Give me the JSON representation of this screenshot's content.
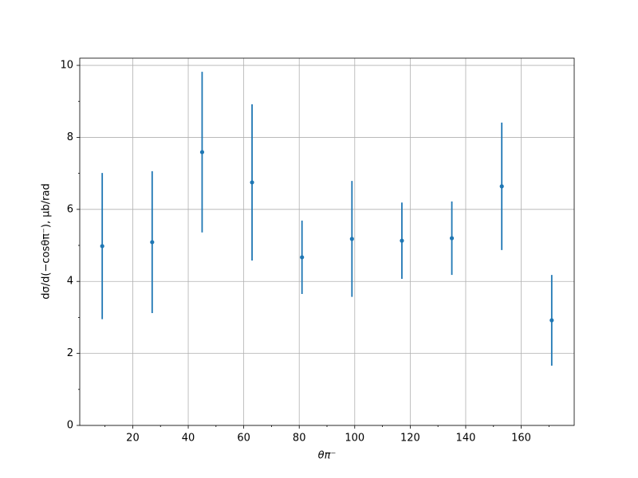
{
  "chart_data": {
    "type": "errorbar",
    "x_label": "θπ⁻",
    "y_label": "dσ/d(−cosθπ⁻), μb/rad",
    "x": [
      9,
      27,
      45,
      63,
      81,
      99,
      117,
      135,
      153,
      171
    ],
    "series": [
      {
        "color": "#1f77b4",
        "values": [
          4.98,
          5.09,
          7.59,
          6.75,
          4.67,
          5.18,
          5.13,
          5.2,
          6.64,
          2.92
        ],
        "errors": [
          2.03,
          1.97,
          2.23,
          2.17,
          1.02,
          1.61,
          1.06,
          1.02,
          1.77,
          1.26
        ]
      }
    ],
    "xlim": [
      0.9,
      179.1
    ],
    "ylim": [
      0,
      10.2
    ],
    "xticks": [
      20,
      40,
      60,
      80,
      100,
      120,
      140,
      160
    ],
    "yticks": [
      0,
      2,
      4,
      6,
      8,
      10
    ],
    "xminorticks": [
      10,
      30,
      50,
      70,
      90,
      110,
      130,
      150,
      170
    ],
    "yminorticks": [
      1,
      3,
      5,
      7,
      9
    ],
    "grid": true
  }
}
